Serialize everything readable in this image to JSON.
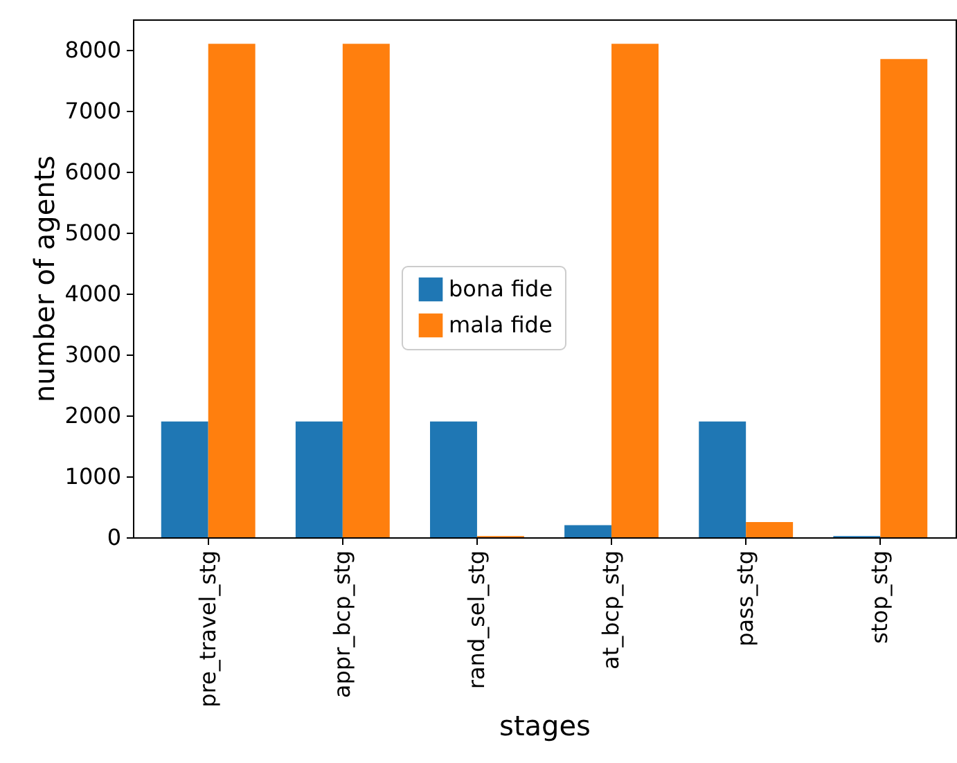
{
  "chart_data": {
    "type": "bar",
    "xlabel": "stages",
    "ylabel": "number of agents",
    "categories": [
      "pre_travel_stg",
      "appr_bcp_stg",
      "rand_sel_stg",
      "at_bcp_stg",
      "pass_stg",
      "stop_stg"
    ],
    "series": [
      {
        "name": "bona fide",
        "color": "#1f77b4",
        "values": [
          1900,
          1900,
          1900,
          200,
          1900,
          20
        ]
      },
      {
        "name": "mala fide",
        "color": "#ff7f0e",
        "values": [
          8100,
          8100,
          20,
          8100,
          250,
          7850
        ]
      }
    ],
    "ylim": [
      0,
      8500
    ],
    "yticks": [
      0,
      1000,
      2000,
      3000,
      4000,
      5000,
      6000,
      7000,
      8000
    ],
    "grid": false,
    "legend": "center"
  }
}
